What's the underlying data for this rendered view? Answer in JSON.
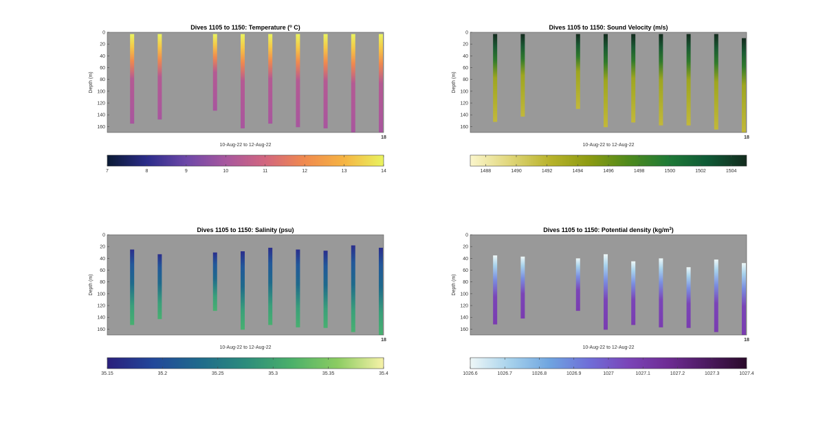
{
  "chart_data": [
    {
      "type": "heatmap",
      "title_main": "Dives 1105 to 1150: Temperature (",
      "title_sup": "o",
      "title_tail": " C)",
      "ylabel": "Depth (m)",
      "xlabel": "10-Aug-22 to 12-Aug-22",
      "x_tick": "18",
      "ylim": [
        0,
        170
      ],
      "y_ticks": [
        "0",
        "20",
        "40",
        "60",
        "80",
        "100",
        "120",
        "140",
        "160"
      ],
      "colorbar": {
        "min": 7,
        "max": 14,
        "ticks": [
          "7",
          "8",
          "9",
          "10",
          "11",
          "12",
          "13",
          "14"
        ],
        "colors": [
          "#0a1a33",
          "#2b2c8a",
          "#6d48a8",
          "#a7579e",
          "#d2667f",
          "#f08a4e",
          "#f5b443",
          "#e9f35f"
        ]
      },
      "profiles": [
        {
          "x": 0.09,
          "top": 3,
          "bottom": 155
        },
        {
          "x": 0.19,
          "top": 3,
          "bottom": 148
        },
        {
          "x": 0.39,
          "top": 3,
          "bottom": 133
        },
        {
          "x": 0.49,
          "top": 3,
          "bottom": 163
        },
        {
          "x": 0.59,
          "top": 3,
          "bottom": 155
        },
        {
          "x": 0.69,
          "top": 3,
          "bottom": 161
        },
        {
          "x": 0.79,
          "top": 3,
          "bottom": 163
        },
        {
          "x": 0.89,
          "top": 3,
          "bottom": 170
        },
        {
          "x": 0.99,
          "top": 3,
          "bottom": 170
        }
      ],
      "profile_colors": [
        [
          0,
          "#e9f35f"
        ],
        [
          0.15,
          "#f5c646"
        ],
        [
          0.3,
          "#f08a4e"
        ],
        [
          0.5,
          "#b45a93"
        ],
        [
          1,
          "#a8569e"
        ]
      ]
    },
    {
      "type": "heatmap",
      "title_main": "Dives 1105 to 1150: Sound Velocity (m/s)",
      "ylabel": "Depth (m)",
      "xlabel": "10-Aug-22 to 12-Aug-22",
      "x_tick": "18",
      "ylim": [
        0,
        170
      ],
      "y_ticks": [
        "0",
        "20",
        "40",
        "60",
        "80",
        "100",
        "120",
        "140",
        "160"
      ],
      "colorbar": {
        "min": 1487,
        "max": 1505,
        "ticks": [
          "1488",
          "1490",
          "1492",
          "1494",
          "1496",
          "1498",
          "1500",
          "1502",
          "1504"
        ],
        "colors": [
          "#fbf6cc",
          "#e0d67a",
          "#b9b32c",
          "#8d9b12",
          "#4f8a1c",
          "#1f7a36",
          "#0f5a36",
          "#132b1e"
        ]
      },
      "profiles": [
        {
          "x": 0.09,
          "top": 3,
          "bottom": 152
        },
        {
          "x": 0.19,
          "top": 3,
          "bottom": 143
        },
        {
          "x": 0.39,
          "top": 3,
          "bottom": 130
        },
        {
          "x": 0.49,
          "top": 3,
          "bottom": 161
        },
        {
          "x": 0.59,
          "top": 3,
          "bottom": 153
        },
        {
          "x": 0.69,
          "top": 3,
          "bottom": 158
        },
        {
          "x": 0.79,
          "top": 3,
          "bottom": 158
        },
        {
          "x": 0.89,
          "top": 3,
          "bottom": 165
        },
        {
          "x": 0.99,
          "top": 10,
          "bottom": 170
        }
      ],
      "profile_colors": [
        [
          0,
          "#132b1e"
        ],
        [
          0.15,
          "#1a5a33"
        ],
        [
          0.3,
          "#2f7a2c"
        ],
        [
          0.5,
          "#9ea620"
        ],
        [
          1,
          "#c2b83a"
        ]
      ]
    },
    {
      "type": "heatmap",
      "title_main": "Dives 1105 to 1150: Salinity (psu)",
      "ylabel": "Depth (m)",
      "xlabel": "10-Aug-22 to 12-Aug-22",
      "x_tick": "18",
      "ylim": [
        0,
        170
      ],
      "y_ticks": [
        "0",
        "20",
        "40",
        "60",
        "80",
        "100",
        "120",
        "140",
        "160"
      ],
      "colorbar": {
        "min": 35.15,
        "max": 35.4,
        "ticks": [
          "35.15",
          "35.2",
          "35.25",
          "35.3",
          "35.35",
          "35.4"
        ],
        "colors": [
          "#2a1f7c",
          "#22489a",
          "#1f6a8c",
          "#2c8c7c",
          "#4bb06a",
          "#8ccc62",
          "#f7f2a8"
        ]
      },
      "profiles": [
        {
          "x": 0.09,
          "top": 25,
          "bottom": 153
        },
        {
          "x": 0.19,
          "top": 33,
          "bottom": 143
        },
        {
          "x": 0.39,
          "top": 30,
          "bottom": 129
        },
        {
          "x": 0.49,
          "top": 28,
          "bottom": 161
        },
        {
          "x": 0.59,
          "top": 22,
          "bottom": 153
        },
        {
          "x": 0.69,
          "top": 25,
          "bottom": 157
        },
        {
          "x": 0.79,
          "top": 27,
          "bottom": 158
        },
        {
          "x": 0.89,
          "top": 18,
          "bottom": 165
        },
        {
          "x": 0.99,
          "top": 22,
          "bottom": 170
        }
      ],
      "profile_colors": [
        [
          0,
          "#2a2e8c"
        ],
        [
          0.2,
          "#22589a"
        ],
        [
          0.45,
          "#1f6a8c"
        ],
        [
          0.75,
          "#3aa07a"
        ],
        [
          1,
          "#48b070"
        ]
      ]
    },
    {
      "type": "heatmap",
      "title_main": "Dives 1105 to 1150: Potential density (kg/m",
      "title_sup": "3",
      "title_tail": ")",
      "ylabel": "Depth (m)",
      "xlabel": "10-Aug-22 to 12-Aug-22",
      "x_tick": "18",
      "ylim": [
        0,
        170
      ],
      "y_ticks": [
        "0",
        "20",
        "40",
        "60",
        "80",
        "100",
        "120",
        "140",
        "160"
      ],
      "colorbar": {
        "min": 1026.6,
        "max": 1027.4,
        "ticks": [
          "1026.6",
          "1026.7",
          "1026.8",
          "1026.9",
          "1027",
          "1027.1",
          "1027.2",
          "1027.3",
          "1027.4"
        ],
        "colors": [
          "#eef7f7",
          "#a7d2ec",
          "#6fa5e0",
          "#6f6ed8",
          "#7a45b8",
          "#6e2c94",
          "#4b1a60",
          "#2a0a2a"
        ]
      },
      "profiles": [
        {
          "x": 0.09,
          "top": 35,
          "bottom": 152
        },
        {
          "x": 0.19,
          "top": 37,
          "bottom": 142
        },
        {
          "x": 0.39,
          "top": 40,
          "bottom": 129
        },
        {
          "x": 0.49,
          "top": 33,
          "bottom": 161
        },
        {
          "x": 0.59,
          "top": 45,
          "bottom": 153
        },
        {
          "x": 0.69,
          "top": 40,
          "bottom": 157
        },
        {
          "x": 0.79,
          "top": 55,
          "bottom": 158
        },
        {
          "x": 0.89,
          "top": 42,
          "bottom": 165
        },
        {
          "x": 0.99,
          "top": 48,
          "bottom": 170
        }
      ],
      "profile_colors": [
        [
          0,
          "#eef7f7"
        ],
        [
          0.15,
          "#a7d2ec"
        ],
        [
          0.35,
          "#7a8ee0"
        ],
        [
          0.6,
          "#7a45b8"
        ],
        [
          1,
          "#7a3cb0"
        ]
      ]
    }
  ]
}
